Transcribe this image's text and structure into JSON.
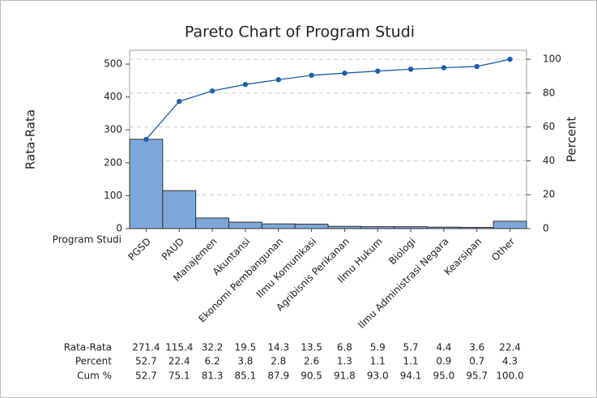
{
  "chart_data": {
    "type": "pareto",
    "title": "Pareto Chart of Program Studi",
    "xlabel": "Program Studi",
    "ylabel": "Rata-Rata",
    "y2label": "Percent",
    "categories": [
      "PGSD",
      "PAUD",
      "Manajemen",
      "Akuntansi",
      "Ekonomi Pembangunan",
      "Ilmu Komunikasi",
      "Agribisnis Perikanan",
      "Ilmu Hukum",
      "Biologi",
      "Ilmu Administrasi Negara",
      "Kearsipan",
      "Other"
    ],
    "series": [
      {
        "name": "Rata-Rata",
        "color": "#7da7d9",
        "values": [
          271.4,
          115.4,
          32.2,
          19.5,
          14.3,
          13.5,
          6.8,
          5.9,
          5.7,
          4.4,
          3.6,
          22.4
        ]
      },
      {
        "name": "Percent",
        "values": [
          52.7,
          22.4,
          6.2,
          3.8,
          2.8,
          2.6,
          1.3,
          1.1,
          1.1,
          0.9,
          0.7,
          4.3
        ]
      },
      {
        "name": "Cum %",
        "color": "#1f5ea8",
        "axis": "y2",
        "values": [
          52.7,
          75.1,
          81.3,
          85.1,
          87.9,
          90.5,
          91.8,
          93.0,
          94.1,
          95.0,
          95.7,
          100.0
        ],
        "value_labels": [
          "52.7",
          "75.1",
          "81.3",
          "85.1",
          "87.9",
          "90.5",
          "91.8",
          "93.0",
          "94.1",
          "95.0",
          "95.7",
          "100.0"
        ]
      }
    ],
    "ylim": [
      0,
      542
    ],
    "yticks": [
      0,
      100,
      200,
      300,
      400,
      500
    ],
    "y2lim": [
      0,
      105.3
    ],
    "y2ticks": [
      0,
      20,
      40,
      60,
      80,
      100
    ],
    "grid": "y2"
  }
}
